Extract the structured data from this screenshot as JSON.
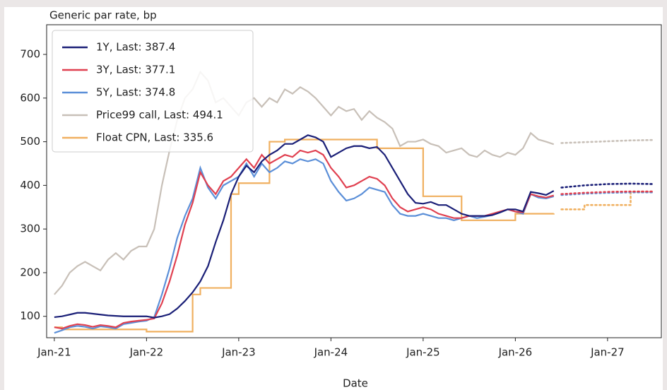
{
  "chart_data": {
    "type": "line",
    "subtitle": "Generic par rate, bp",
    "xlabel": "Date",
    "x": [
      "2021-01",
      "2021-02",
      "2021-03",
      "2021-04",
      "2021-05",
      "2021-06",
      "2021-07",
      "2021-08",
      "2021-09",
      "2021-10",
      "2021-11",
      "2021-12",
      "2022-01",
      "2022-02",
      "2022-03",
      "2022-04",
      "2022-05",
      "2022-06",
      "2022-07",
      "2022-08",
      "2022-09",
      "2022-10",
      "2022-11",
      "2022-12",
      "2023-01",
      "2023-02",
      "2023-03",
      "2023-04",
      "2023-05",
      "2023-06",
      "2023-07",
      "2023-08",
      "2023-09",
      "2023-10",
      "2023-11",
      "2023-12",
      "2024-01",
      "2024-02",
      "2024-03",
      "2024-04",
      "2024-05",
      "2024-06",
      "2024-07",
      "2024-08",
      "2024-09",
      "2024-10",
      "2024-11",
      "2024-12",
      "2025-01",
      "2025-02",
      "2025-03",
      "2025-04",
      "2025-05",
      "2025-06",
      "2025-07",
      "2025-08",
      "2025-09",
      "2025-10",
      "2025-11",
      "2025-12",
      "2026-01",
      "2026-02",
      "2026-03",
      "2026-04",
      "2026-05",
      "2026-06"
    ],
    "forward_x": [
      "2026-07",
      "2026-10",
      "2027-01",
      "2027-04",
      "2027-07"
    ],
    "xlim": [
      "2020-12",
      "2027-08"
    ],
    "xticks": [
      {
        "value": "2021-01",
        "label": "Jan-21"
      },
      {
        "value": "2022-01",
        "label": "Jan-22"
      },
      {
        "value": "2023-01",
        "label": "Jan-23"
      },
      {
        "value": "2024-01",
        "label": "Jan-24"
      },
      {
        "value": "2025-01",
        "label": "Jan-25"
      },
      {
        "value": "2026-01",
        "label": "Jan-26"
      },
      {
        "value": "2027-01",
        "label": "Jan-27"
      }
    ],
    "ylim": [
      51,
      768
    ],
    "yticks": [
      100,
      200,
      300,
      400,
      500,
      600,
      700
    ],
    "grid": false,
    "legend": "upper left",
    "series": [
      {
        "name": "1Y, Last: 387.4",
        "color": "#1a1f77",
        "values": [
          98,
          100,
          104,
          108,
          108,
          106,
          104,
          102,
          101,
          100,
          100,
          100,
          100,
          97,
          100,
          105,
          118,
          135,
          155,
          180,
          215,
          270,
          320,
          380,
          420,
          445,
          430,
          455,
          470,
          480,
          495,
          495,
          505,
          515,
          510,
          500,
          465,
          475,
          485,
          490,
          490,
          485,
          488,
          470,
          440,
          410,
          380,
          360,
          358,
          362,
          355,
          355,
          345,
          335,
          330,
          330,
          330,
          332,
          338,
          345,
          345,
          340,
          385,
          382,
          378,
          387.4
        ],
        "forward": [
          395,
          400,
          403,
          404,
          403
        ]
      },
      {
        "name": "3Y, Last: 377.1",
        "color": "#e04050",
        "values": [
          75,
          72,
          78,
          82,
          80,
          76,
          80,
          78,
          75,
          85,
          88,
          90,
          92,
          95,
          130,
          180,
          240,
          310,
          360,
          430,
          400,
          380,
          410,
          420,
          440,
          460,
          440,
          470,
          450,
          460,
          470,
          465,
          480,
          475,
          480,
          470,
          440,
          420,
          395,
          400,
          410,
          420,
          415,
          400,
          370,
          350,
          340,
          345,
          350,
          345,
          335,
          330,
          325,
          325,
          330,
          330,
          330,
          335,
          340,
          345,
          340,
          338,
          380,
          375,
          372,
          377.1
        ],
        "forward": [
          380,
          383,
          385,
          386,
          386
        ]
      },
      {
        "name": "5Y, Last: 374.8",
        "color": "#5b8fd8",
        "values": [
          62,
          68,
          75,
          78,
          76,
          72,
          77,
          75,
          72,
          82,
          85,
          88,
          90,
          98,
          150,
          210,
          280,
          330,
          370,
          440,
          395,
          370,
          400,
          410,
          420,
          450,
          420,
          450,
          430,
          440,
          455,
          450,
          460,
          455,
          460,
          450,
          410,
          385,
          365,
          370,
          380,
          395,
          390,
          385,
          355,
          335,
          330,
          330,
          335,
          330,
          325,
          325,
          320,
          325,
          330,
          325,
          328,
          332,
          338,
          345,
          340,
          335,
          380,
          372,
          370,
          374.8
        ],
        "forward": [
          378,
          381,
          383,
          384,
          384
        ]
      },
      {
        "name": "Price99 call, Last: 494.1",
        "color": "#c8c0b8",
        "values": [
          150,
          170,
          200,
          215,
          225,
          215,
          205,
          230,
          245,
          230,
          250,
          260,
          260,
          300,
          400,
          480,
          550,
          600,
          620,
          660,
          640,
          590,
          600,
          580,
          560,
          590,
          600,
          580,
          600,
          590,
          620,
          610,
          625,
          615,
          600,
          580,
          560,
          580,
          570,
          575,
          550,
          570,
          555,
          545,
          530,
          490,
          500,
          500,
          505,
          495,
          490,
          475,
          480,
          485,
          470,
          465,
          480,
          470,
          465,
          475,
          470,
          485,
          520,
          505,
          500,
          494.1
        ],
        "forward": [
          497,
          499,
          501,
          503,
          504
        ]
      },
      {
        "name": "Float CPN, Last: 335.6",
        "color": "#f0b060",
        "step": true,
        "values": [
          75,
          70,
          70,
          70,
          70,
          70,
          70,
          70,
          70,
          70,
          70,
          70,
          65,
          65,
          65,
          65,
          65,
          65,
          150,
          165,
          165,
          165,
          165,
          380,
          405,
          405,
          405,
          405,
          500,
          500,
          505,
          505,
          505,
          505,
          505,
          505,
          505,
          505,
          505,
          505,
          505,
          505,
          485,
          485,
          485,
          485,
          485,
          485,
          375,
          375,
          375,
          375,
          375,
          320,
          320,
          320,
          320,
          320,
          320,
          320,
          335,
          335,
          335,
          335,
          335,
          335.6
        ],
        "forward": [
          345,
          355,
          355,
          385,
          385
        ]
      }
    ]
  }
}
